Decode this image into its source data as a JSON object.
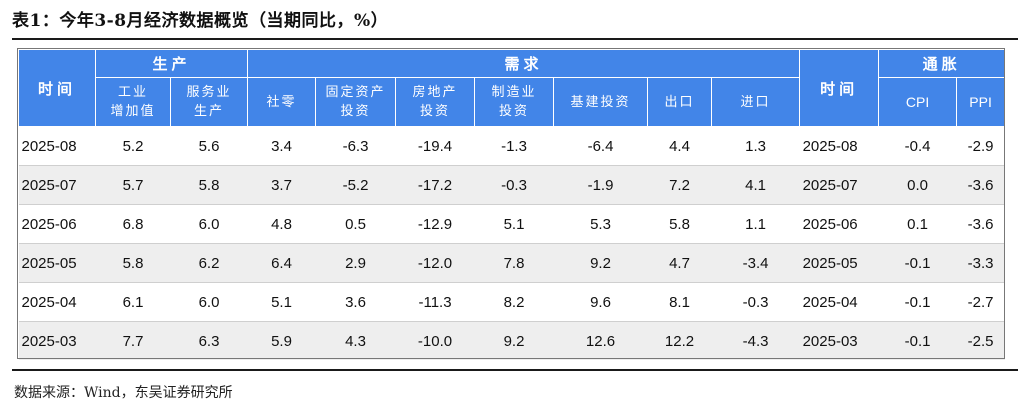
{
  "title": "表1：今年3-8月经济数据概览（当期同比，%）",
  "header": {
    "time_label_left": "时间",
    "time_label_right": "时间",
    "group_production": "生产",
    "group_demand": "需求",
    "group_inflation": "通胀",
    "sub": {
      "industrial": "工业\n增加值",
      "services": "服务业\n生产",
      "retail": "社零",
      "fai": "固定资产\n投资",
      "real_estate": "房地产\n投资",
      "manufacturing": "制造业\n投资",
      "infrastructure": "基建投资",
      "exports": "出口",
      "imports": "进口",
      "cpi": "CPI",
      "ppi": "PPI"
    }
  },
  "rows": [
    {
      "date": "2025-08",
      "industrial": "5.2",
      "services": "5.6",
      "retail": "3.4",
      "fai": "-6.3",
      "real_estate": "-19.4",
      "manufacturing": "-1.3",
      "infrastructure": "-6.4",
      "exports": "4.4",
      "imports": "1.3",
      "date2": "2025-08",
      "cpi": "-0.4",
      "ppi": "-2.9"
    },
    {
      "date": "2025-07",
      "industrial": "5.7",
      "services": "5.8",
      "retail": "3.7",
      "fai": "-5.2",
      "real_estate": "-17.2",
      "manufacturing": "-0.3",
      "infrastructure": "-1.9",
      "exports": "7.2",
      "imports": "4.1",
      "date2": "2025-07",
      "cpi": "0.0",
      "ppi": "-3.6"
    },
    {
      "date": "2025-06",
      "industrial": "6.8",
      "services": "6.0",
      "retail": "4.8",
      "fai": "0.5",
      "real_estate": "-12.9",
      "manufacturing": "5.1",
      "infrastructure": "5.3",
      "exports": "5.8",
      "imports": "1.1",
      "date2": "2025-06",
      "cpi": "0.1",
      "ppi": "-3.6"
    },
    {
      "date": "2025-05",
      "industrial": "5.8",
      "services": "6.2",
      "retail": "6.4",
      "fai": "2.9",
      "real_estate": "-12.0",
      "manufacturing": "7.8",
      "infrastructure": "9.2",
      "exports": "4.7",
      "imports": "-3.4",
      "date2": "2025-05",
      "cpi": "-0.1",
      "ppi": "-3.3"
    },
    {
      "date": "2025-04",
      "industrial": "6.1",
      "services": "6.0",
      "retail": "5.1",
      "fai": "3.6",
      "real_estate": "-11.3",
      "manufacturing": "8.2",
      "infrastructure": "9.6",
      "exports": "8.1",
      "imports": "-0.3",
      "date2": "2025-04",
      "cpi": "-0.1",
      "ppi": "-2.7"
    },
    {
      "date": "2025-03",
      "industrial": "7.7",
      "services": "6.3",
      "retail": "5.9",
      "fai": "4.3",
      "real_estate": "-10.0",
      "manufacturing": "9.2",
      "infrastructure": "12.6",
      "exports": "12.2",
      "imports": "-4.3",
      "date2": "2025-03",
      "cpi": "-0.1",
      "ppi": "-2.5"
    }
  ],
  "source": "数据来源：Wind，东吴证券研究所"
}
